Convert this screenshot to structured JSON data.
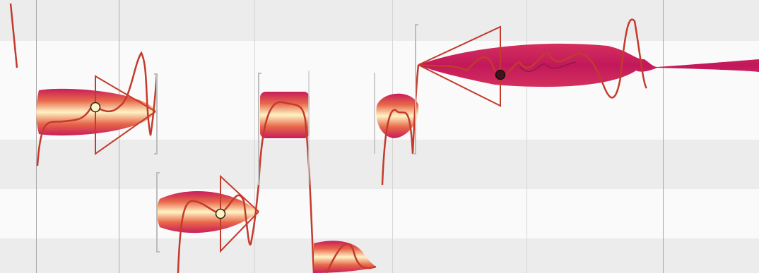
{
  "app": {
    "view": "note-editor",
    "theme": {
      "row_dark": "#ececec",
      "row_light": "#fafafa",
      "grid_line": "#a9a9a9",
      "blob_outer": "#c81e5a",
      "blob_mid": "#e8674a",
      "blob_inner": "#fff3c4",
      "pitch_curve": "#c43a2c",
      "handle": "#bdbdbd",
      "selected_blob": "#c2185b"
    }
  },
  "notes": [
    {
      "id": "note-1",
      "selected": false
    },
    {
      "id": "note-2",
      "selected": false
    },
    {
      "id": "note-3",
      "selected": false
    },
    {
      "id": "note-4",
      "selected": false
    },
    {
      "id": "note-5",
      "selected": false
    },
    {
      "id": "note-6",
      "selected": true
    }
  ]
}
